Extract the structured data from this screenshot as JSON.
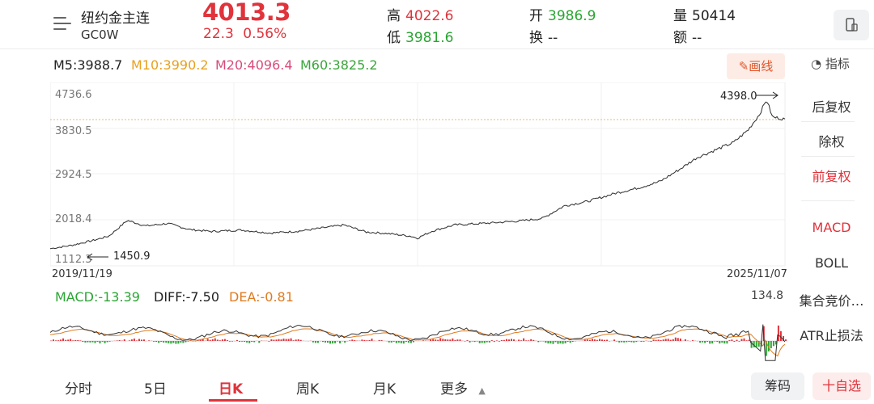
{
  "header": {
    "name": "纽约金主连",
    "code": "GC0W",
    "price": "4013.3",
    "change": "22.3  0.56%",
    "high_label": "高",
    "high": "4022.6",
    "low_label": "低",
    "low": "3981.6",
    "open_label": "开",
    "open": "3986.9",
    "turnover_label": "换",
    "turnover": "--",
    "volume_label": "量",
    "volume": "50414",
    "amount_label": "额",
    "amount": "--"
  },
  "ma": {
    "m5": "M5:3988.7",
    "m10": "M10:3990.2",
    "m20": "M20:4096.4",
    "m60": "M60:3825.2"
  },
  "toolbar": {
    "draw_label": "画线",
    "indicator_label": "指标"
  },
  "chart": {
    "y_ticks": [
      "4736.6",
      "3830.5",
      "2924.5",
      "2018.4",
      "1112.3"
    ],
    "start_date": "2019/11/19",
    "end_date": "2025/11/07",
    "max_label": "4398.0",
    "min_label": "1450.9",
    "macd_label": "MACD:-13.39",
    "diff_label": "DIFF:-7.50",
    "dea_label": "DEA:-0.81",
    "macd_max": "134.8"
  },
  "side": {
    "items": [
      "后复权",
      "除权",
      "前复权",
      "MACD",
      "BOLL",
      "集合竞价…",
      "ATR止损法"
    ]
  },
  "tabs": [
    "分时",
    "5日",
    "日K",
    "周K",
    "月K",
    "更多"
  ],
  "bottom": {
    "chip_label": "筹码",
    "watch_label": "十自选"
  },
  "colors": {
    "up": "#e0333b",
    "down": "#2aa533",
    "accent": "#e0552a"
  },
  "chart_data": {
    "type": "line",
    "x_range": [
      "2019/11/19",
      "2025/11/07"
    ],
    "ylim": [
      1112.3,
      4736.6
    ],
    "y_ticks": [
      4736.6,
      3830.5,
      2924.5,
      2018.4,
      1112.3
    ],
    "max": 4398.0,
    "min": 1450.9,
    "last": 4013.3,
    "keypoints": [
      [
        0,
        1450.9
      ],
      [
        0.03,
        1520
      ],
      [
        0.06,
        1620
      ],
      [
        0.08,
        1700
      ],
      [
        0.105,
        2010
      ],
      [
        0.13,
        1900
      ],
      [
        0.16,
        1950
      ],
      [
        0.19,
        1830
      ],
      [
        0.22,
        1790
      ],
      [
        0.26,
        1820
      ],
      [
        0.3,
        1760
      ],
      [
        0.34,
        1800
      ],
      [
        0.38,
        1880
      ],
      [
        0.4,
        1920
      ],
      [
        0.43,
        1780
      ],
      [
        0.46,
        1750
      ],
      [
        0.49,
        1700
      ],
      [
        0.5,
        1660
      ],
      [
        0.52,
        1800
      ],
      [
        0.55,
        1920
      ],
      [
        0.6,
        1960
      ],
      [
        0.64,
        2000
      ],
      [
        0.67,
        2050
      ],
      [
        0.7,
        2300
      ],
      [
        0.73,
        2380
      ],
      [
        0.77,
        2550
      ],
      [
        0.8,
        2650
      ],
      [
        0.83,
        2780
      ],
      [
        0.86,
        3050
      ],
      [
        0.88,
        3250
      ],
      [
        0.905,
        3400
      ],
      [
        0.93,
        3550
      ],
      [
        0.95,
        3800
      ],
      [
        0.965,
        4100
      ],
      [
        0.975,
        4398
      ],
      [
        0.983,
        4050
      ],
      [
        1.0,
        4013.3
      ]
    ]
  }
}
